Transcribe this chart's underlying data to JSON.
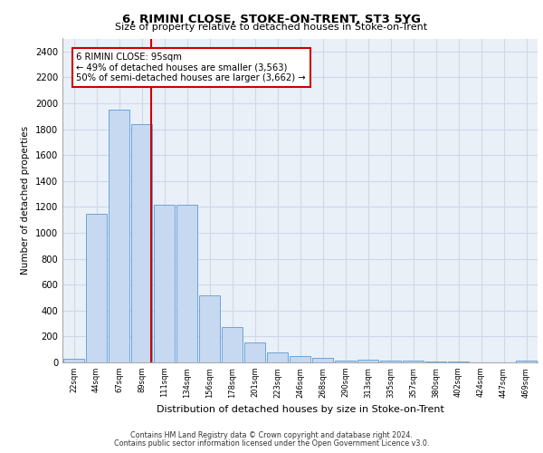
{
  "title1": "6, RIMINI CLOSE, STOKE-ON-TRENT, ST3 5YG",
  "title2": "Size of property relative to detached houses in Stoke-on-Trent",
  "xlabel": "Distribution of detached houses by size in Stoke-on-Trent",
  "ylabel": "Number of detached properties",
  "categories": [
    "22sqm",
    "44sqm",
    "67sqm",
    "89sqm",
    "111sqm",
    "134sqm",
    "156sqm",
    "178sqm",
    "201sqm",
    "223sqm",
    "246sqm",
    "268sqm",
    "290sqm",
    "313sqm",
    "335sqm",
    "357sqm",
    "380sqm",
    "402sqm",
    "424sqm",
    "447sqm",
    "469sqm"
  ],
  "values": [
    28,
    1150,
    1950,
    1840,
    1220,
    1220,
    515,
    270,
    155,
    80,
    47,
    37,
    15,
    20,
    12,
    12,
    4,
    5,
    3,
    2,
    15
  ],
  "bar_color": "#c6d9f0",
  "bar_edge_color": "#5b9bd5",
  "vline_x": 3.42,
  "vline_color": "#cc0000",
  "annotation_box_text": "6 RIMINI CLOSE: 95sqm\n← 49% of detached houses are smaller (3,563)\n50% of semi-detached houses are larger (3,662) →",
  "box_edge_color": "#cc0000",
  "ylim": [
    0,
    2500
  ],
  "yticks": [
    0,
    200,
    400,
    600,
    800,
    1000,
    1200,
    1400,
    1600,
    1800,
    2000,
    2200,
    2400
  ],
  "grid_color": "#d0d8e8",
  "bg_color": "#eaf0f8",
  "footer1": "Contains HM Land Registry data © Crown copyright and database right 2024.",
  "footer2": "Contains public sector information licensed under the Open Government Licence v3.0."
}
